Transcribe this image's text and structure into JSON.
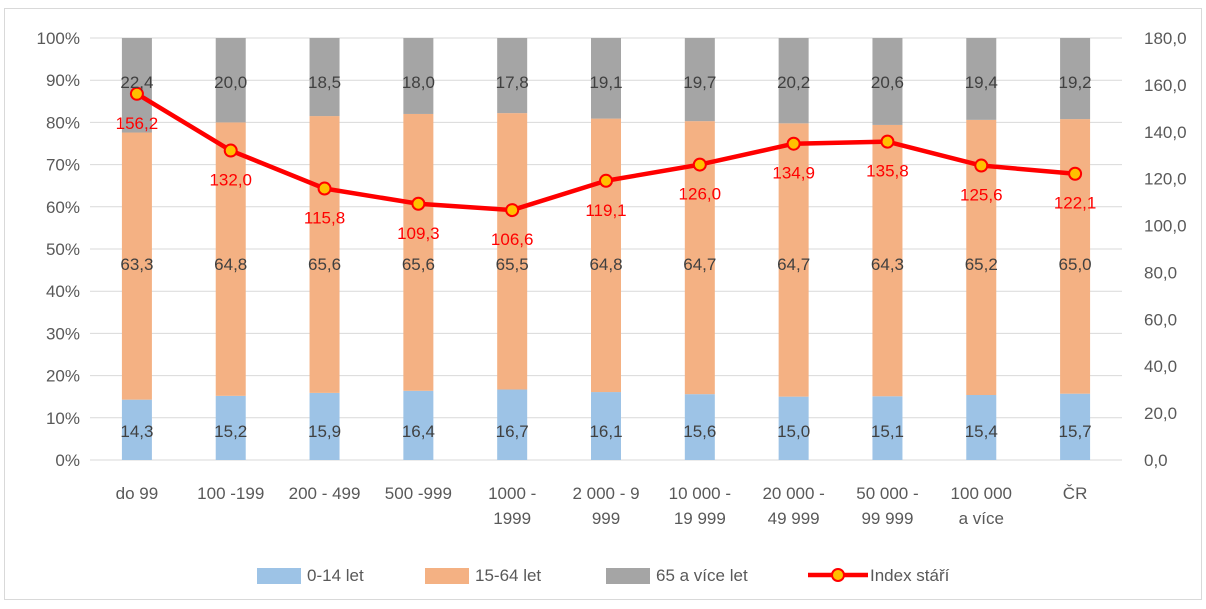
{
  "chart_data": {
    "type": "bar",
    "stacked": "percent",
    "categories": [
      [
        "do 99"
      ],
      [
        "100 -199"
      ],
      [
        "200 - 499"
      ],
      [
        "500 -999"
      ],
      [
        "1000 -",
        "1999"
      ],
      [
        "2 000 - 9",
        "999"
      ],
      [
        "10 000 -",
        "19 999"
      ],
      [
        "20 000 -",
        "49 999"
      ],
      [
        "50 000 -",
        "99 999"
      ],
      [
        "100 000",
        "a více"
      ],
      [
        "ČR"
      ]
    ],
    "series": [
      {
        "name": "0-14 let",
        "type": "bar",
        "axis": "left",
        "color": "#9DC3E6",
        "values": [
          14.3,
          15.2,
          15.9,
          16.4,
          16.7,
          16.1,
          15.6,
          15.0,
          15.1,
          15.4,
          15.7
        ],
        "labels": [
          "14,3",
          "15,2",
          "15,9",
          "16,4",
          "16,7",
          "16,1",
          "15,6",
          "15,0",
          "15,1",
          "15,4",
          "15,7"
        ]
      },
      {
        "name": "15-64 let",
        "type": "bar",
        "axis": "left",
        "color": "#F4B183",
        "values": [
          63.3,
          64.8,
          65.6,
          65.6,
          65.5,
          64.8,
          64.7,
          64.7,
          64.3,
          65.2,
          65.0
        ],
        "labels": [
          "63,3",
          "64,8",
          "65,6",
          "65,6",
          "65,5",
          "64,8",
          "64,7",
          "64,7",
          "64,3",
          "65,2",
          "65,0"
        ]
      },
      {
        "name": "65 a více let",
        "type": "bar",
        "axis": "left",
        "color": "#A5A5A5",
        "values": [
          22.4,
          20.0,
          18.5,
          18.0,
          17.8,
          19.1,
          19.7,
          20.2,
          20.6,
          19.4,
          19.2
        ],
        "labels": [
          "22,4",
          "20,0",
          "18,5",
          "18,0",
          "17,8",
          "19,1",
          "19,7",
          "20,2",
          "20,6",
          "19,4",
          "19,2"
        ]
      },
      {
        "name": "Index stáří",
        "type": "line",
        "axis": "right",
        "color": "#FF0000",
        "marker_color": "#FFC000",
        "values": [
          156.2,
          132.0,
          115.8,
          109.3,
          106.6,
          119.1,
          126.0,
          134.9,
          135.8,
          125.6,
          122.1
        ],
        "labels": [
          "156,2",
          "132,0",
          "115,8",
          "109,3",
          "106,6",
          "119,1",
          "126,0",
          "134,9",
          "135,8",
          "125,6",
          "122,1"
        ]
      }
    ],
    "y_left": {
      "ylim": [
        0,
        100
      ],
      "ticks": [
        "0%",
        "10%",
        "20%",
        "30%",
        "40%",
        "50%",
        "60%",
        "70%",
        "80%",
        "90%",
        "100%"
      ]
    },
    "y_right": {
      "ylim": [
        0,
        180
      ],
      "ticks": [
        "0,0",
        "20,0",
        "40,0",
        "60,0",
        "80,0",
        "100,0",
        "120,0",
        "140,0",
        "160,0",
        "180,0"
      ]
    },
    "grid": true,
    "legend": "bottom",
    "title": "",
    "xlabel": "",
    "ylabel": ""
  }
}
